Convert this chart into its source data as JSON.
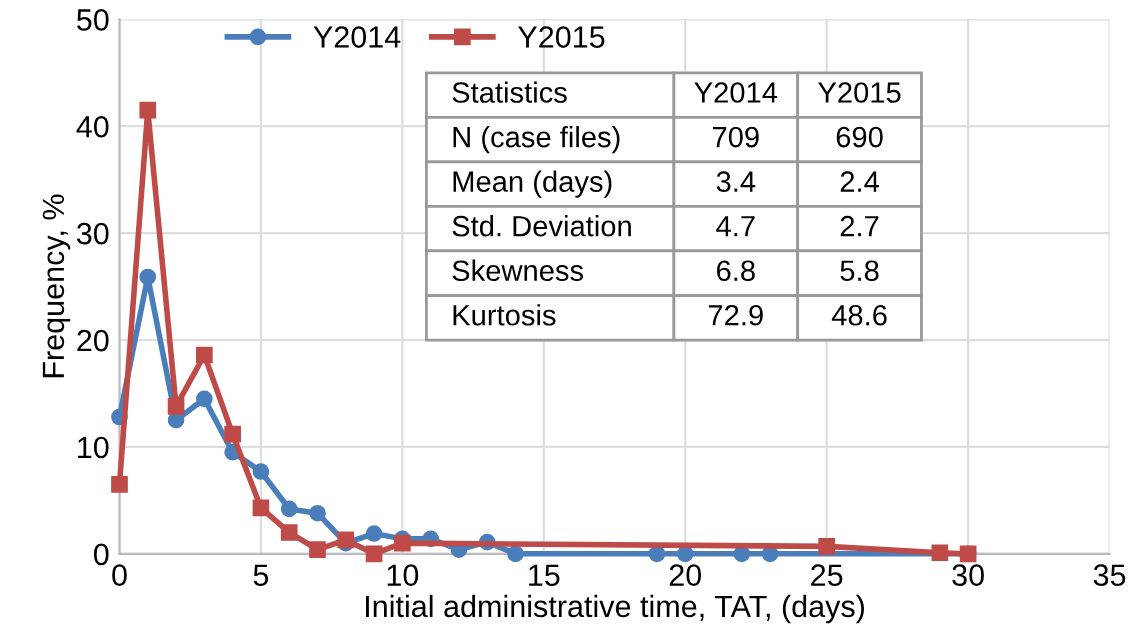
{
  "chart_data": {
    "type": "line",
    "xlabel": "Initial administrative time, TAT, (days)",
    "ylabel": "Frequency, %",
    "xlim": [
      0,
      35
    ],
    "xticks": [
      0,
      5,
      10,
      15,
      20,
      25,
      30,
      35
    ],
    "ylim": [
      0,
      50
    ],
    "yticks": [
      0,
      10,
      20,
      30,
      40,
      50
    ],
    "grid": true,
    "legend": "top",
    "series": [
      {
        "name": "Y2014",
        "color": "#4a7ebb",
        "marker": "circle",
        "x": [
          0,
          1,
          2,
          3,
          4,
          5,
          6,
          7,
          8,
          9,
          10,
          11,
          12,
          13,
          14,
          19,
          20,
          22,
          23,
          30
        ],
        "values": [
          12.8,
          25.9,
          12.5,
          14.5,
          9.5,
          7.7,
          4.2,
          3.8,
          1.0,
          1.9,
          1.4,
          1.4,
          0.4,
          1.1,
          0,
          0,
          0,
          0,
          0,
          0
        ]
      },
      {
        "name": "Y2015",
        "color": "#be4b48",
        "marker": "square",
        "x": [
          0,
          1,
          2,
          3,
          4,
          5,
          6,
          7,
          8,
          9,
          10,
          25,
          29,
          30
        ],
        "values": [
          6.5,
          41.5,
          13.8,
          18.6,
          11.2,
          4.3,
          2.0,
          0.4,
          1.3,
          0,
          1.0,
          0.7,
          0.1,
          0
        ]
      }
    ],
    "annotations": [
      "Statistics",
      "Y2014",
      "Y2015",
      "N (case files)",
      "709",
      "690",
      "Mean (days)",
      "3.4",
      "2.4",
      "Std. Deviation",
      "4.7",
      "2.7",
      "Skewness",
      "6.8",
      "5.8",
      "Kurtosis",
      "72.9",
      "48.6"
    ]
  }
}
